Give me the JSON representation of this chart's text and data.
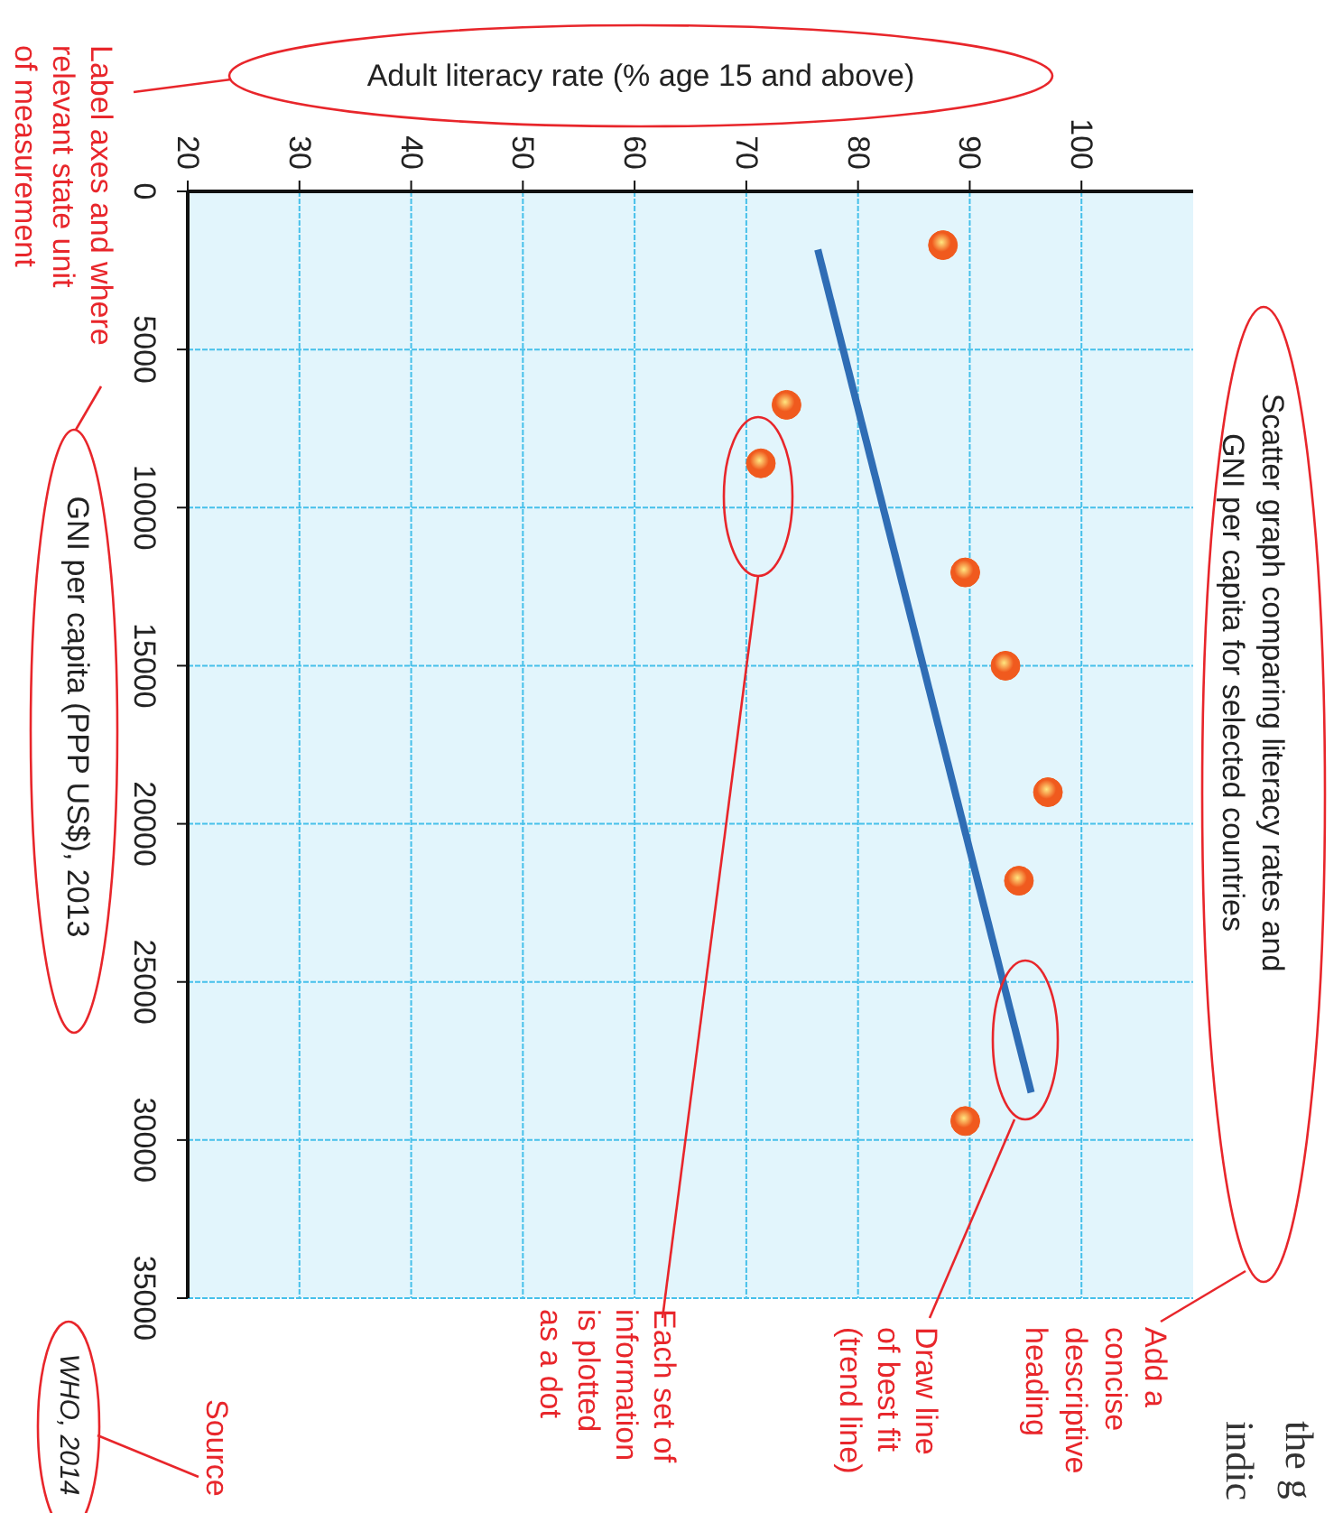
{
  "chart_data": {
    "type": "scatter",
    "title": "Scatter graph comparing literacy rates and\nGNI per capita for selected countries",
    "xlabel": "Adult literacy rate (% age 15 and above)",
    "ylabel": "GNI per capita (PPP US$), 2013",
    "xlim": [
      20,
      110
    ],
    "xticks": [
      20,
      30,
      40,
      50,
      60,
      70,
      80,
      90,
      100
    ],
    "ylim": [
      35000,
      0
    ],
    "yticks": [
      0,
      5000,
      10000,
      15000,
      20000,
      25000,
      30000,
      35000
    ],
    "grid": true,
    "marker": "circle",
    "series": [
      {
        "color": "#f05a1e",
        "x": [
          87.6,
          73.6,
          71.3,
          89.6,
          93.2,
          97.0,
          94.4,
          89.6
        ],
        "values": [
          1700,
          6750,
          8600,
          12050,
          15000,
          19000,
          21800,
          29400
        ]
      },
      {
        "type": "line",
        "color": "#2f6db5",
        "marker": "none",
        "line_style": "solid",
        "x": [
          76.4,
          95.5
        ],
        "values": [
          1840,
          28500
        ]
      }
    ],
    "annotations": [
      "Label axes and where\nrelevant state unit\nof measurement",
      "WHO, 2014",
      "Source",
      "Each set of\ninformation\nis plotted\nas a dot",
      "Draw line\nof best fit\n(trend line)",
      "Add a\nconcise\ndescriptive\nheading",
      "the g\nindic"
    ]
  }
}
